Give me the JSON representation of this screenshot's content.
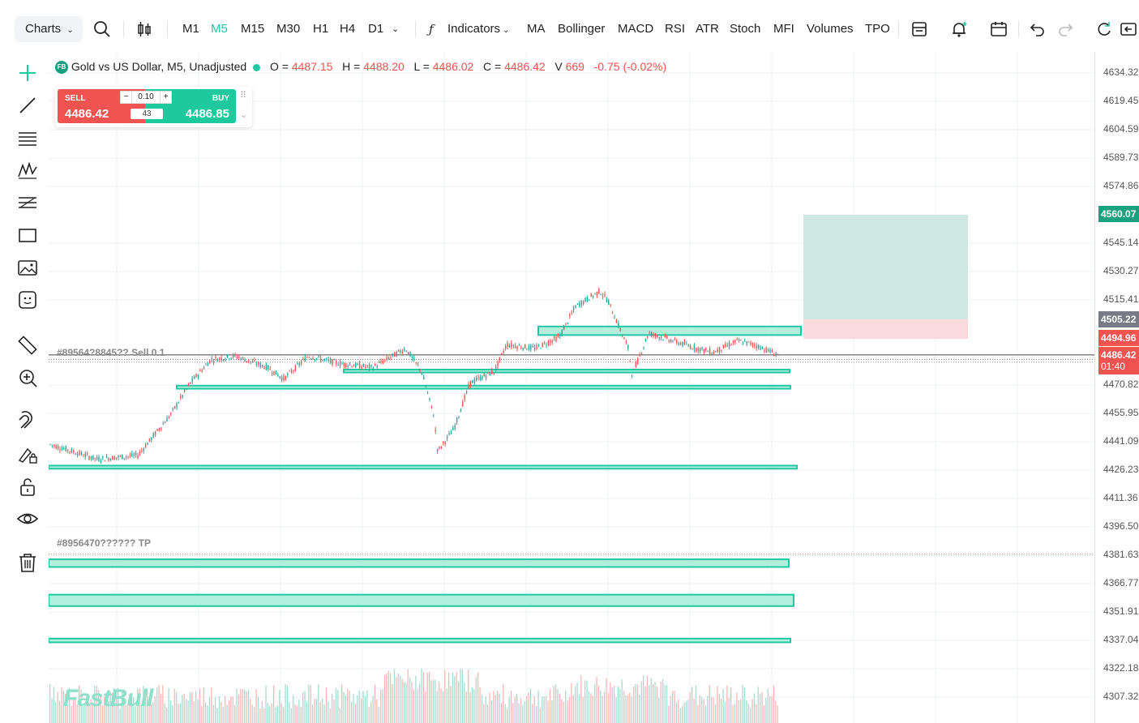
{
  "toolbar": {
    "charts_label": "Charts",
    "timeframes": [
      "M1",
      "M5",
      "M15",
      "M30",
      "H1",
      "H4",
      "D1"
    ],
    "active_timeframe": "M5",
    "indicators_label": "Indicators",
    "indicator_shortcuts": [
      "MA",
      "Bollinger",
      "MACD",
      "RSI",
      "ATR",
      "Stoch",
      "MFI",
      "Volumes",
      "TPO"
    ]
  },
  "legend": {
    "badge": "FB",
    "symbol": "Gold vs US Dollar, M5, Unadjusted",
    "open_label": "O =",
    "open": "4487.15",
    "high_label": "H =",
    "high": "4488.20",
    "low_label": "L =",
    "low": "4486.02",
    "close_label": "C =",
    "close": "4486.42",
    "volume_label": "V",
    "volume": "669",
    "change": "-0.75 (-0.02%)"
  },
  "trade_panel": {
    "sell_label": "SELL",
    "sell_price": "4486.42",
    "buy_label": "BUY",
    "buy_price": "4486.85",
    "quantity": "0.10",
    "spread": "43",
    "minus": "−",
    "plus": "+"
  },
  "orders": {
    "sell_line_label": "#89564?8845?? Sell 0.1",
    "tp_line_label": "#8956470?????? TP"
  },
  "price_axis": {
    "ticks": [
      "4634.32",
      "4619.45",
      "4604.59",
      "4589.73",
      "4574.86",
      "4545.14",
      "4530.27",
      "4515.41",
      "4470.82",
      "4455.95",
      "4441.09",
      "4426.23",
      "4411.36",
      "4396.50",
      "4381.63",
      "4366.77",
      "4351.91",
      "4337.04",
      "4322.18",
      "4307.32"
    ],
    "tag_tp": "4560.07",
    "tag_entry": "4505.22",
    "tag_sl": "4494.96",
    "tag_last": "4486.42",
    "tag_countdown": "01:40"
  },
  "colors": {
    "accent": "#22c7a4",
    "down": "#ef5350",
    "up": "#26a69a",
    "zone_fill": "#b2f0dd",
    "zone_stroke": "#22c7a4"
  },
  "watermark": "FastBull"
}
